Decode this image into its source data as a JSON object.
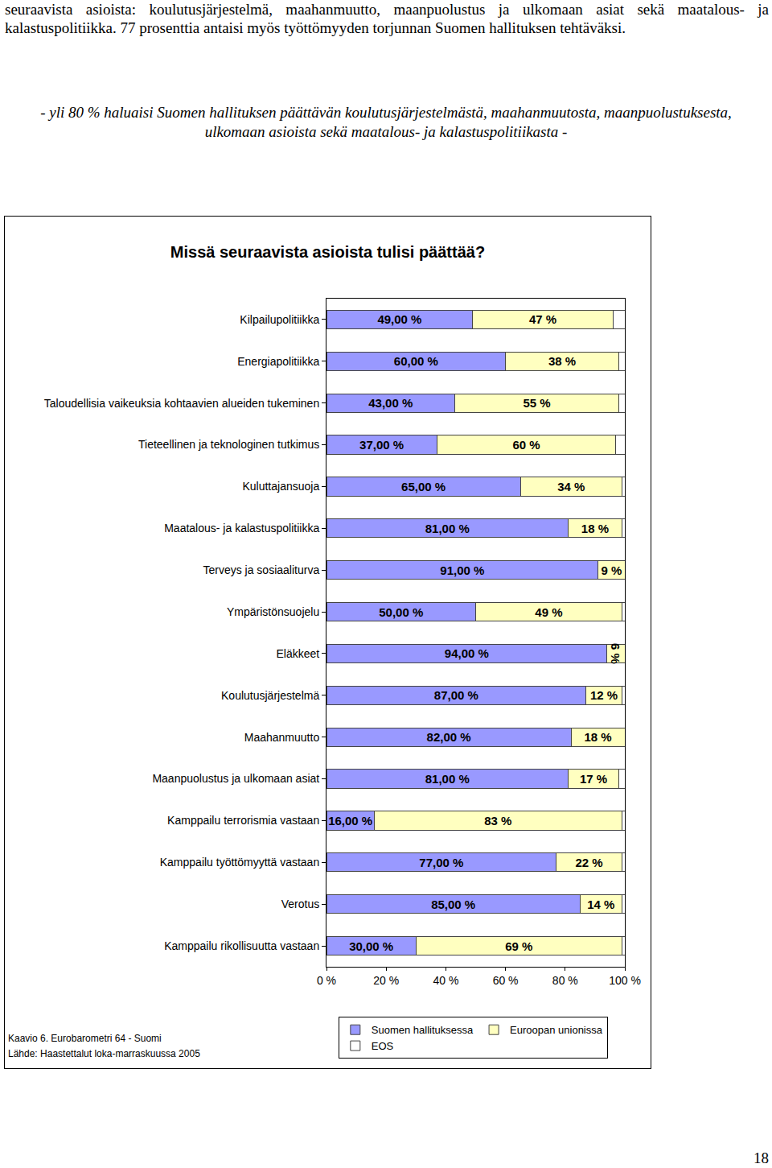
{
  "page": {
    "intro": "seuraavista asioista: koulutusjärjestelmä, maahanmuutto, maanpuolustus ja ulkomaan asiat sekä maatalous- ja kalastuspolitiikka. 77 prosenttia antaisi myös työttömyyden torjunnan Suomen hallituksen tehtäväksi.",
    "heading": "- yli 80 % haluaisi Suomen hallituksen päättävän koulutusjärjestelmästä, maahanmuutosta, maanpuolustuksesta, ulkomaan asioista sekä maatalous- ja kalastuspolitiikasta -",
    "caption": [
      "Kaavio 6. Eurobarometri 64 - Suomi",
      "Lähde: Haastettalut loka-marraskuussa 2005"
    ],
    "page_number": "18"
  },
  "chart_data": {
    "type": "bar",
    "orientation": "horizontal",
    "stacked": true,
    "title": "Missä seuraavista asioista tulisi päättää?",
    "categories": [
      "Kilpailupolitiikka",
      "Energiapolitiikka",
      "Taloudellisia vaikeuksia kohtaavien alueiden tukeminen",
      "Tieteellinen ja teknologinen tutkimus",
      "Kuluttajansuoja",
      "Maatalous- ja kalastuspolitiikka",
      "Terveys ja sosiaaliturva",
      "Ympäristönsuojelu",
      "Eläkkeet",
      "Koulutusjärjestelmä",
      "Maahanmuutto",
      "Maanpuolustus ja ulkomaan asiat",
      "Kamppailu terrorismia vastaan",
      "Kamppailu työttömyyttä vastaan",
      "Verotus",
      "Kamppailu rikollisuutta vastaan"
    ],
    "series": [
      {
        "name": "Suomen hallituksessa",
        "color": "#9999ff",
        "values": [
          49,
          60,
          43,
          37,
          65,
          81,
          91,
          50,
          94,
          87,
          82,
          81,
          16,
          77,
          85,
          30
        ],
        "value_labels": [
          "49,00 %",
          "60,00 %",
          "43,00 %",
          "37,00 %",
          "65,00 %",
          "81,00 %",
          "91,00 %",
          "50,00 %",
          "94,00 %",
          "87,00 %",
          "82,00 %",
          "81,00 %",
          "16,00 %",
          "77,00 %",
          "85,00 %",
          "30,00 %"
        ]
      },
      {
        "name": "Euroopan unionissa",
        "color": "#ffffc0",
        "values": [
          47,
          38,
          55,
          60,
          34,
          18,
          9,
          49,
          6,
          12,
          18,
          17,
          83,
          22,
          14,
          69
        ],
        "value_labels": [
          "47 %",
          "38 %",
          "55 %",
          "60 %",
          "34 %",
          "18 %",
          "9 %",
          "49 %",
          "6 %",
          "12 %",
          "18 %",
          "17 %",
          "83 %",
          "22 %",
          "14 %",
          "69 %"
        ]
      },
      {
        "name": "EOS",
        "color": "#ffffff",
        "values": [
          4,
          2,
          2,
          3,
          1,
          1,
          0,
          1,
          0,
          1,
          0,
          2,
          1,
          1,
          1,
          1
        ]
      }
    ],
    "xlim": [
      0,
      100
    ],
    "xticks": [
      {
        "value": 0,
        "label": "0 %"
      },
      {
        "value": 20,
        "label": "20 %"
      },
      {
        "value": 40,
        "label": "40 %"
      },
      {
        "value": 60,
        "label": "60 %"
      },
      {
        "value": 80,
        "label": "80 %"
      },
      {
        "value": 100,
        "label": "100 %"
      }
    ],
    "grid": false,
    "legend": "bottom",
    "data_labels": true
  }
}
